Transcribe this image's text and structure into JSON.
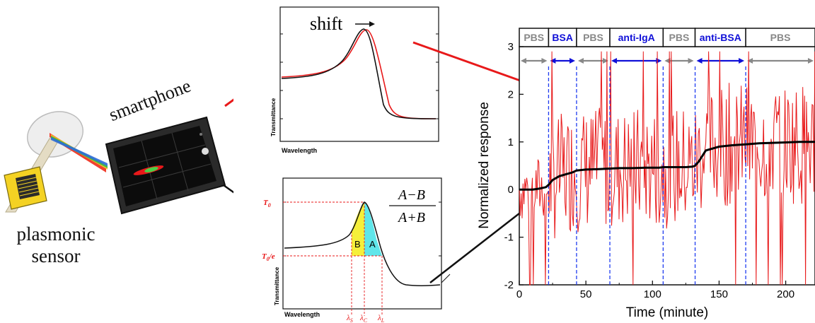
{
  "labels": {
    "plasmonic_sensor": "plasmonic sensor",
    "smartphone": "smartphone"
  },
  "top_chart": {
    "annotation": "shift",
    "xlabel": "Wavelength",
    "ylabel": "Transmittance",
    "colors": {
      "before": "#000000",
      "after": "#e8191a"
    }
  },
  "bottom_chart": {
    "xlabel": "Wavelength",
    "ylabel": "Transmittance",
    "peak_label": "T",
    "peak_sub": "0",
    "threshold_label": "T",
    "threshold_sub": "0",
    "threshold_suffix": "/e",
    "region_b": "B",
    "region_a": "A",
    "lambda_s": "λ",
    "lambda_s_sub": "S",
    "lambda_c": "λ",
    "lambda_c_sub": "C",
    "lambda_l": "λ",
    "lambda_l_sub": "L",
    "formula_num": "A−B",
    "formula_den": "A+B",
    "colors": {
      "region_b": "#f5ef3b",
      "region_a": "#5fe6ea",
      "guides": "#e8191a"
    }
  },
  "chart_data": {
    "type": "line",
    "xlabel": "Time (minute)",
    "ylabel": "Normalized response",
    "xlim": [
      0,
      222
    ],
    "ylim": [
      -2,
      3
    ],
    "xticks": [
      "0",
      "50",
      "100",
      "150",
      "200"
    ],
    "yticks": [
      "-2",
      "-1",
      "0",
      "1",
      "2",
      "3"
    ],
    "phases": [
      {
        "label": "PBS",
        "start": 0,
        "end": 22,
        "color": "#888888"
      },
      {
        "label": "BSA",
        "start": 22,
        "end": 43,
        "color": "#1010d8"
      },
      {
        "label": "PBS",
        "start": 43,
        "end": 68,
        "color": "#888888"
      },
      {
        "label": "anti-IgA",
        "start": 68,
        "end": 108,
        "color": "#1010d8"
      },
      {
        "label": "PBS",
        "start": 108,
        "end": 132,
        "color": "#888888"
      },
      {
        "label": "anti-BSA",
        "start": 132,
        "end": 170,
        "color": "#1010d8"
      },
      {
        "label": "PBS",
        "start": 170,
        "end": 222,
        "color": "#888888"
      }
    ],
    "boundaries": [
      22,
      43,
      68,
      108,
      132,
      170
    ],
    "series": [
      {
        "color": "#e8191a",
        "x": [
          0,
          10,
          20,
          22,
          30,
          40,
          43,
          50,
          60,
          68,
          80,
          100,
          108,
          120,
          130,
          132,
          140,
          150,
          160,
          170,
          180,
          200,
          222
        ],
        "y": [
          0.0,
          0.0,
          0.05,
          0.1,
          0.3,
          0.4,
          0.4,
          0.42,
          0.44,
          0.45,
          0.46,
          0.47,
          0.47,
          0.48,
          0.5,
          0.6,
          0.85,
          0.92,
          0.95,
          0.97,
          0.98,
          0.99,
          1.0
        ]
      },
      {
        "color": "#000000",
        "x": [
          0,
          5,
          10,
          15,
          20,
          22,
          25,
          30,
          35,
          40,
          43,
          50,
          60,
          68,
          75,
          85,
          95,
          105,
          108,
          115,
          125,
          130,
          132,
          135,
          140,
          150,
          160,
          170,
          180,
          190,
          200,
          210,
          222
        ],
        "y": [
          0.0,
          0.0,
          0.0,
          0.02,
          0.05,
          0.1,
          0.2,
          0.28,
          0.32,
          0.36,
          0.4,
          0.42,
          0.43,
          0.44,
          0.45,
          0.45,
          0.46,
          0.46,
          0.47,
          0.47,
          0.47,
          0.48,
          0.5,
          0.6,
          0.82,
          0.9,
          0.93,
          0.95,
          0.97,
          0.98,
          0.99,
          1.0,
          1.0
        ]
      }
    ]
  }
}
